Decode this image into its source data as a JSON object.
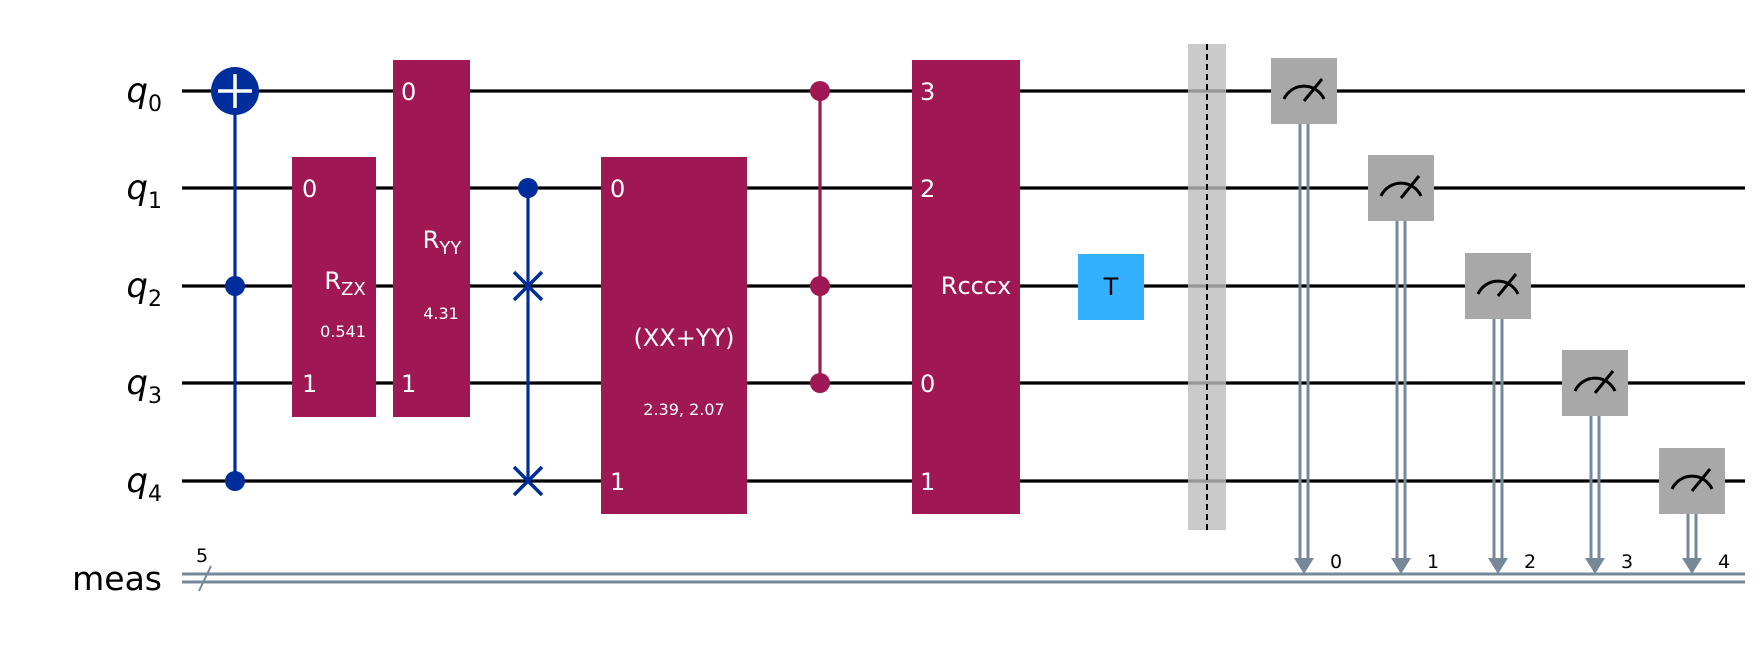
{
  "qubits": [
    {
      "base": "q",
      "index": "0"
    },
    {
      "base": "q",
      "index": "1"
    },
    {
      "base": "q",
      "index": "2"
    },
    {
      "base": "q",
      "index": "3"
    },
    {
      "base": "q",
      "index": "4"
    }
  ],
  "classical": {
    "label": "meas",
    "size": "5",
    "bits": [
      "0",
      "1",
      "2",
      "3",
      "4"
    ]
  },
  "gates": {
    "rzx": {
      "base": "R",
      "sub": "ZX",
      "param": "0.541",
      "port_top": "0",
      "port_bottom": "1"
    },
    "ryy": {
      "base": "R",
      "sub": "YY",
      "param": "4.31",
      "port_top": "0",
      "port_bottom": "1"
    },
    "xxyy": {
      "label": "(XX+YY)",
      "param": "2.39, 2.07",
      "port_top": "0",
      "port_bottom": "1"
    },
    "rcccx": {
      "label": "Rcccx",
      "ports": [
        "3",
        "2",
        "0",
        "1"
      ]
    },
    "t": {
      "label": "T"
    }
  },
  "colors": {
    "wire": "#000000",
    "classical_wire": "#778899",
    "cx": "#002d9c",
    "swap": "#002d9c",
    "multi_qubit_gate": "#9f1853",
    "t_gate": "#33b1ff",
    "barrier": "#bdbdbd",
    "measure": "#a8a8a8"
  },
  "icons": {
    "target": "cnot-target-icon",
    "meter": "meter-icon",
    "swap": "swap-x-icon"
  }
}
